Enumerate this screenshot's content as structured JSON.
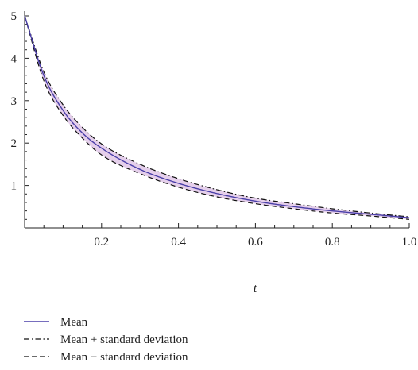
{
  "chart_data": {
    "type": "line",
    "title": "",
    "xlabel": "t",
    "ylabel": "",
    "xlim": [
      0,
      1
    ],
    "ylim": [
      0,
      5
    ],
    "x_ticks": [
      0.2,
      0.4,
      0.6,
      0.8,
      1.0
    ],
    "x_tick_labels": [
      "0.2",
      "0.4",
      "0.6",
      "0.8",
      "1.0"
    ],
    "y_ticks": [
      1,
      2,
      3,
      4,
      5
    ],
    "y_tick_labels": [
      "1",
      "2",
      "3",
      "4",
      "5"
    ],
    "grid": false,
    "legend_position": "bottom-left",
    "x": [
      0,
      0.05,
      0.1,
      0.15,
      0.2,
      0.3,
      0.4,
      0.5,
      0.6,
      0.7,
      0.8,
      0.9,
      1.0
    ],
    "series": [
      {
        "name": "Mean",
        "style": "solid",
        "color": "#4a3fa8",
        "values": [
          5.0,
          3.59,
          2.77,
          2.24,
          1.88,
          1.38,
          1.05,
          0.81,
          0.63,
          0.5,
          0.4,
          0.32,
          0.24
        ]
      },
      {
        "name": "Mean + standard deviation",
        "style": "dashdot",
        "color": "#111111",
        "values": [
          5.0,
          3.68,
          2.9,
          2.37,
          1.98,
          1.5,
          1.16,
          0.9,
          0.7,
          0.57,
          0.45,
          0.35,
          0.26
        ]
      },
      {
        "name": "Mean − standard deviation",
        "style": "dashed",
        "color": "#111111",
        "values": [
          5.0,
          3.47,
          2.65,
          2.12,
          1.72,
          1.28,
          0.96,
          0.73,
          0.57,
          0.45,
          0.35,
          0.28,
          0.2
        ]
      }
    ],
    "band_fill_color": "#dcbfe4"
  }
}
